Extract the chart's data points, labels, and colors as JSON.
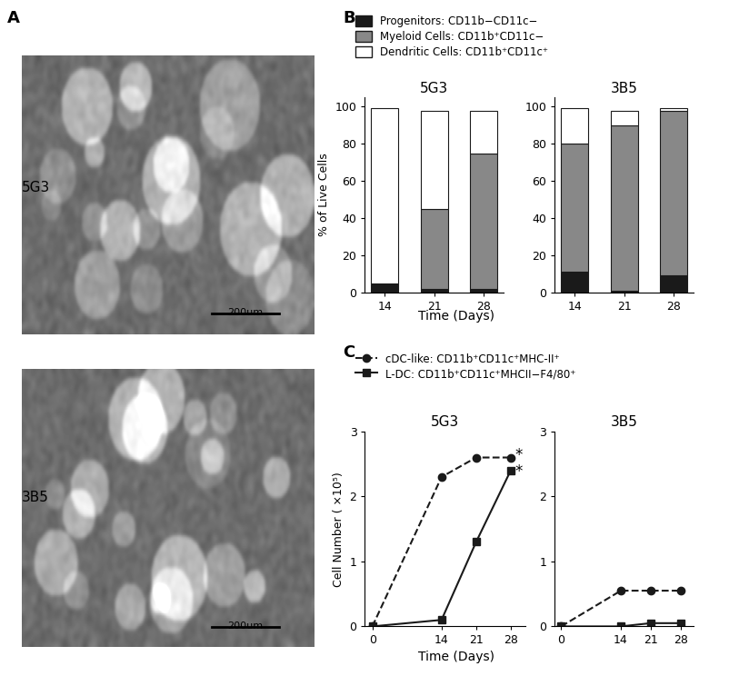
{
  "panel_A_label": "A",
  "panel_B_label": "B",
  "panel_C_label": "C",
  "bar_legend": [
    {
      "label": "Progenitors: CD11b−CD11c−",
      "color": "#1a1a1a"
    },
    {
      "label": "Myeloid Cells: CD11b⁺CD11c−",
      "color": "#888888"
    },
    {
      "label": "Dendritic Cells: CD11b⁺CD11c⁺",
      "color": "#ffffff"
    }
  ],
  "5G3_bar_days": [
    14,
    21,
    28
  ],
  "5G3_progenitors": [
    5,
    2,
    2
  ],
  "5G3_myeloid": [
    0,
    43,
    73
  ],
  "5G3_dendritic": [
    94,
    53,
    23
  ],
  "3B5_bar_days": [
    14,
    21,
    28
  ],
  "3B5_progenitors": [
    11,
    1,
    9
  ],
  "3B5_myeloid": [
    69,
    89,
    89
  ],
  "3B5_dendritic": [
    19,
    8,
    1
  ],
  "bar_ylabel": "% of Live Cells",
  "bar_xlabel": "Time (Days)",
  "bar_yticks": [
    0,
    20,
    40,
    60,
    80,
    100
  ],
  "line_legend": [
    {
      "label": "cDC-like: CD11b⁺CD11c⁺MHC-II⁺",
      "style": "dashed",
      "marker": "o"
    },
    {
      "label": "L-DC: CD11b⁺CD11c⁺MHCII−F4/80⁺",
      "style": "solid",
      "marker": "s"
    }
  ],
  "5G3_line_days": [
    0,
    14,
    21,
    28
  ],
  "5G3_cdc": [
    0,
    2.3,
    2.6,
    2.6
  ],
  "5G3_ldc": [
    0,
    0.1,
    1.3,
    2.4
  ],
  "3B5_line_days": [
    0,
    14,
    21,
    28
  ],
  "3B5_cdc": [
    0,
    0.55,
    0.55,
    0.55
  ],
  "3B5_ldc": [
    0,
    0.0,
    0.05,
    0.05
  ],
  "line_ylabel": "Cell Number ( ×10⁵)",
  "line_xlabel": "Time (Days)",
  "line_yticks": [
    0,
    1,
    2,
    3
  ],
  "line_ylim": [
    0,
    3
  ],
  "title_5G3": "5G3",
  "title_3B5": "3B5",
  "line_color": "#1a1a1a",
  "bg_color": "#ffffff"
}
